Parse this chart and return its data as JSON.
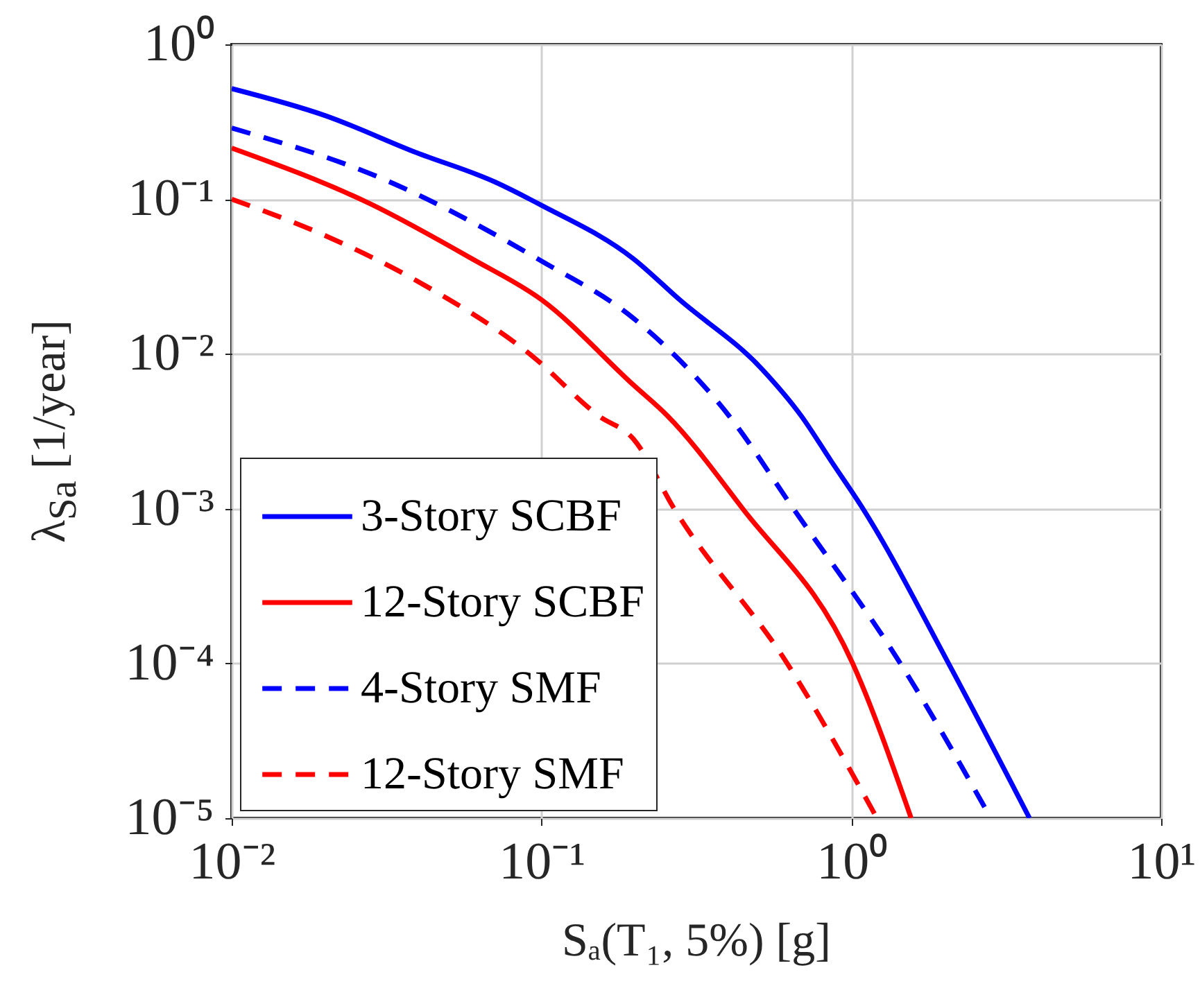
{
  "chart_data": {
    "type": "line",
    "xlabel": "Sₐ(T₁, 5%) [g]",
    "ylabel": "λ$_{Sa}$ [1/year]",
    "log": "xy",
    "grid": true,
    "legend": "bottom left",
    "xlim": [
      0.01,
      10
    ],
    "xticks": [
      {
        "value": 0.01,
        "label": "10⁻²"
      },
      {
        "value": 0.1,
        "label": "10⁻¹"
      },
      {
        "value": 1,
        "label": "10⁰"
      },
      {
        "value": 10,
        "label": "10¹"
      }
    ],
    "ylim": [
      1e-05,
      1
    ],
    "yticks": [
      {
        "value": 1e-05,
        "label": "10⁻⁵"
      },
      {
        "value": 0.0001,
        "label": "10⁻⁴"
      },
      {
        "value": 0.001,
        "label": "10⁻³"
      },
      {
        "value": 0.01,
        "label": "10⁻²"
      },
      {
        "value": 0.1,
        "label": "10⁻¹"
      },
      {
        "value": 1,
        "label": "10⁰"
      }
    ],
    "series": [
      {
        "name": "3-Story SCBF",
        "color": "#0000ff",
        "line_style": "solid",
        "x": [
          0.01,
          0.02,
          0.0394,
          0.0708,
          0.1,
          0.198,
          0.279,
          0.516,
          0.689,
          0.865,
          1.09,
          2.06,
          3.76
        ],
        "values": [
          0.518,
          0.347,
          0.2,
          0.129,
          0.0912,
          0.0412,
          0.0224,
          0.00794,
          0.00398,
          0.002,
          0.001,
          0.0001,
          1e-05
        ]
      },
      {
        "name": "12-Story SCBF",
        "color": "#ff0000",
        "line_style": "solid",
        "x": [
          0.01,
          0.028,
          0.0596,
          0.1,
          0.198,
          0.255,
          0.446,
          1.01,
          1.56
        ],
        "values": [
          0.214,
          0.0933,
          0.0412,
          0.0224,
          0.0063,
          0.00398,
          0.001,
          0.0001,
          1e-05
        ]
      },
      {
        "name": "4-Story SMF",
        "color": "#0000ff",
        "line_style": "dashed",
        "x": [
          0.01,
          0.03,
          0.1,
          0.198,
          0.279,
          0.403,
          0.65,
          1.44,
          2.82
        ],
        "values": [
          0.288,
          0.138,
          0.0398,
          0.017,
          0.00912,
          0.00398,
          0.001,
          0.0001,
          1e-05
        ]
      },
      {
        "name": "12-Story SMF",
        "color": "#ff0000",
        "line_style": "dashed",
        "x": [
          0.01,
          0.0192,
          0.0423,
          0.0929,
          0.153,
          0.198,
          0.268,
          0.621,
          1.21
        ],
        "values": [
          0.1,
          0.0603,
          0.0275,
          0.00977,
          0.00398,
          0.00282,
          0.001,
          0.0001,
          1e-05
        ]
      }
    ]
  }
}
